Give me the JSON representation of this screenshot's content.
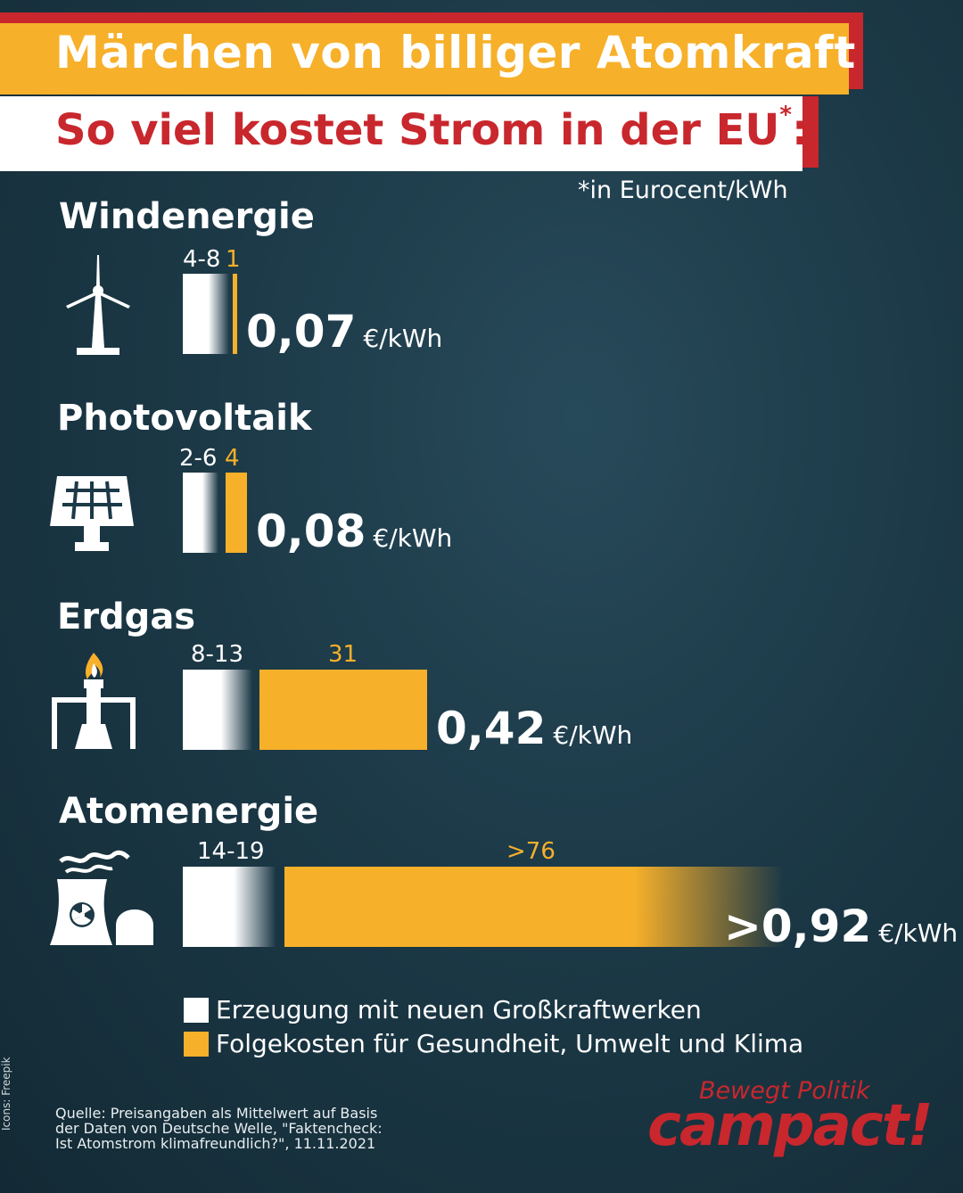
{
  "header": {
    "title": "Märchen von billiger Atomkraft",
    "subtitle": "So viel kostet Strom in der EU",
    "subtitle_mark": "*",
    "subtitle_colon": ":",
    "footnote": "*in Eurocent/kWh"
  },
  "colors": {
    "background": "#1c3947",
    "accent_yellow": "#f7b02a",
    "brand_red": "#c8272d",
    "white": "#ffffff"
  },
  "chart_data": {
    "type": "bar",
    "orientation": "horizontal",
    "stacked": true,
    "unit": "Eurocent/kWh",
    "categories": [
      "Windenergie",
      "Photovoltaik",
      "Erdgas",
      "Atomenergie"
    ],
    "series": [
      {
        "name": "Erzeugung mit neuen Großkraftwerken",
        "labels": [
          "4-8",
          "2-6",
          "8-13",
          "14-19"
        ],
        "values": [
          6,
          4,
          10.5,
          16.5
        ]
      },
      {
        "name": "Folgekosten für Gesundheit, Umwelt und Klima",
        "labels": [
          "1",
          "4",
          "31",
          ">76"
        ],
        "values": [
          1,
          4,
          31,
          76
        ]
      }
    ],
    "totals": [
      {
        "value": "0,07",
        "unit": "€/kWh"
      },
      {
        "value": "0,08",
        "unit": "€/kWh"
      },
      {
        "value": "0,42",
        "unit": "€/kWh"
      },
      {
        "value": ">0,92",
        "unit": "€/kWh"
      }
    ],
    "icons": [
      "wind-turbine-icon",
      "solar-panel-icon",
      "gas-flare-icon",
      "nuclear-plant-icon"
    ]
  },
  "legend": [
    {
      "label": "Erzeugung mit neuen Großkraftwerken",
      "color": "#ffffff"
    },
    {
      "label": "Folgekosten für Gesundheit, Umwelt und Klima",
      "color": "#f7b02a"
    }
  ],
  "source": "Quelle: Preisangaben als Mittelwert auf Basis der Daten von Deutsche Welle, \"Faktencheck: Ist Atomstrom klimafreundlich?\", 11.11.2021",
  "credits": "Icons: Freepik",
  "brand": {
    "tagline": "Bewegt Politik",
    "name": "campact!"
  }
}
